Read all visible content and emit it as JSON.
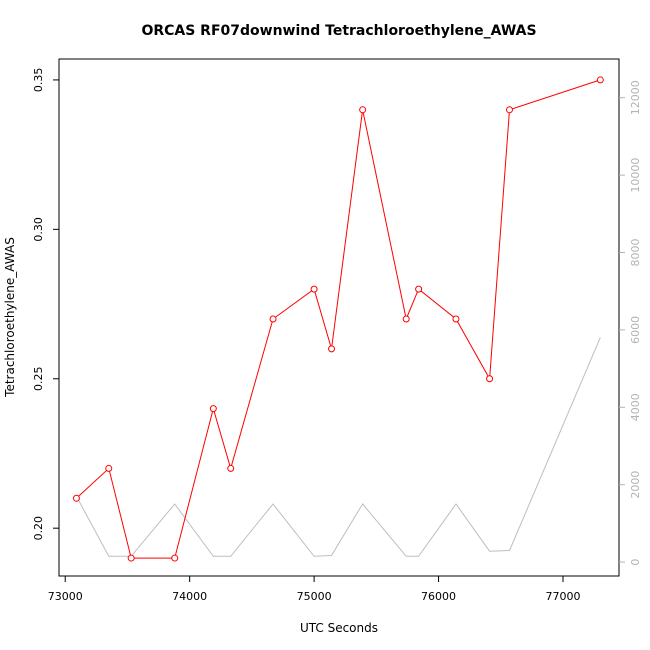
{
  "chart_data": {
    "type": "line",
    "title": "ORCAS RF07downwind Tetrachloroethylene_AWAS",
    "xlabel": "UTC Seconds",
    "ylabel": "Tetrachloroethylene_AWAS",
    "xlim": [
      72950,
      77450
    ],
    "ylim": [
      0.184,
      0.357
    ],
    "y2lim": [
      -360,
      13000
    ],
    "x_ticks": [
      73000,
      74000,
      75000,
      76000,
      77000
    ],
    "y_ticks": [
      0.2,
      0.25,
      0.3,
      0.35
    ],
    "y2_ticks": [
      0,
      2000,
      4000,
      6000,
      8000,
      10000,
      12000
    ],
    "x_tick_labels": [
      "73000",
      "74000",
      "75000",
      "76000",
      "77000"
    ],
    "y_tick_labels": [
      "0.20",
      "0.25",
      "0.30",
      "0.35"
    ],
    "y2_tick_labels": [
      "0",
      "2000",
      "4000",
      "6000",
      "8000",
      "10000",
      "12000"
    ],
    "series": [
      {
        "axis": "left",
        "color": "#ff0000",
        "markers": true,
        "x": [
          73090,
          73350,
          73530,
          73880,
          74190,
          74330,
          74670,
          75000,
          75140,
          75390,
          75740,
          75840,
          76140,
          76410,
          76570,
          77300
        ],
        "values": [
          0.21,
          0.22,
          0.19,
          0.19,
          0.24,
          0.22,
          0.27,
          0.28,
          0.26,
          0.34,
          0.27,
          0.28,
          0.27,
          0.25,
          0.34,
          0.35
        ]
      },
      {
        "axis": "right",
        "color": "#bebebe",
        "markers": false,
        "x": [
          73090,
          73350,
          73530,
          73880,
          74190,
          74330,
          74670,
          75000,
          75140,
          75390,
          75740,
          75840,
          76140,
          76410,
          76570,
          77300
        ],
        "values": [
          1700,
          150,
          150,
          1500,
          150,
          150,
          1500,
          150,
          170,
          1500,
          150,
          150,
          1500,
          280,
          300,
          5800
        ]
      }
    ]
  }
}
